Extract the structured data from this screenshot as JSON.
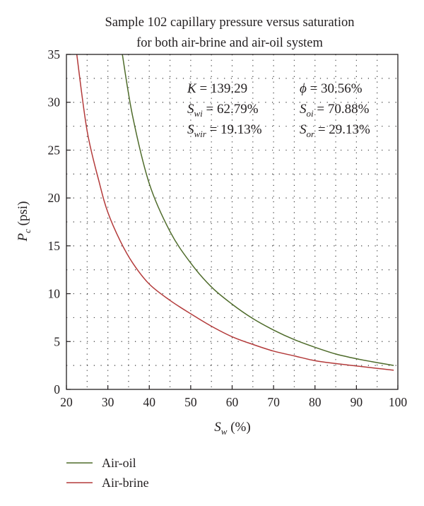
{
  "chart_data": {
    "type": "line",
    "title": [
      "Sample 102 capillary pressure versus saturation",
      "for both air-brine and air-oil system"
    ],
    "xlabel": "S_w (%)",
    "ylabel": "P_c (psi)",
    "xlim": [
      20,
      100
    ],
    "ylim": [
      0,
      35
    ],
    "xticks": [
      "20",
      "30",
      "40",
      "50",
      "60",
      "70",
      "80",
      "90",
      "100"
    ],
    "yticks": [
      "0",
      "5",
      "10",
      "15",
      "20",
      "25",
      "30",
      "35"
    ],
    "grid": "dotted",
    "legend_position": "below",
    "annotations": [
      "K = 139.29",
      "ϕ = 30.56%",
      "S_wi = 62.79%",
      "S_oi = 70.88%",
      "S_wir = 19.13%",
      "S_or = 29.13%"
    ],
    "series": [
      {
        "name": "Air-oil",
        "color": "#4e6b2a",
        "points": [
          [
            33.5,
            35
          ],
          [
            36,
            28.5
          ],
          [
            40,
            21.5
          ],
          [
            45,
            16.5
          ],
          [
            50,
            13.2
          ],
          [
            55,
            10.7
          ],
          [
            60,
            8.9
          ],
          [
            65,
            7.4
          ],
          [
            70,
            6.2
          ],
          [
            75,
            5.2
          ],
          [
            80,
            4.4
          ],
          [
            85,
            3.7
          ],
          [
            90,
            3.2
          ],
          [
            95,
            2.8
          ],
          [
            99,
            2.5
          ]
        ]
      },
      {
        "name": "Air-brine",
        "color": "#b33a3a",
        "points": [
          [
            22.5,
            35
          ],
          [
            25,
            27
          ],
          [
            28,
            21.5
          ],
          [
            30,
            18.5
          ],
          [
            33,
            15.5
          ],
          [
            36,
            13.2
          ],
          [
            40,
            11
          ],
          [
            45,
            9.3
          ],
          [
            50,
            7.9
          ],
          [
            55,
            6.6
          ],
          [
            60,
            5.5
          ],
          [
            65,
            4.7
          ],
          [
            70,
            4
          ],
          [
            75,
            3.5
          ],
          [
            80,
            3
          ],
          [
            85,
            2.7
          ],
          [
            90,
            2.45
          ],
          [
            95,
            2.2
          ],
          [
            99,
            2
          ]
        ]
      }
    ]
  }
}
